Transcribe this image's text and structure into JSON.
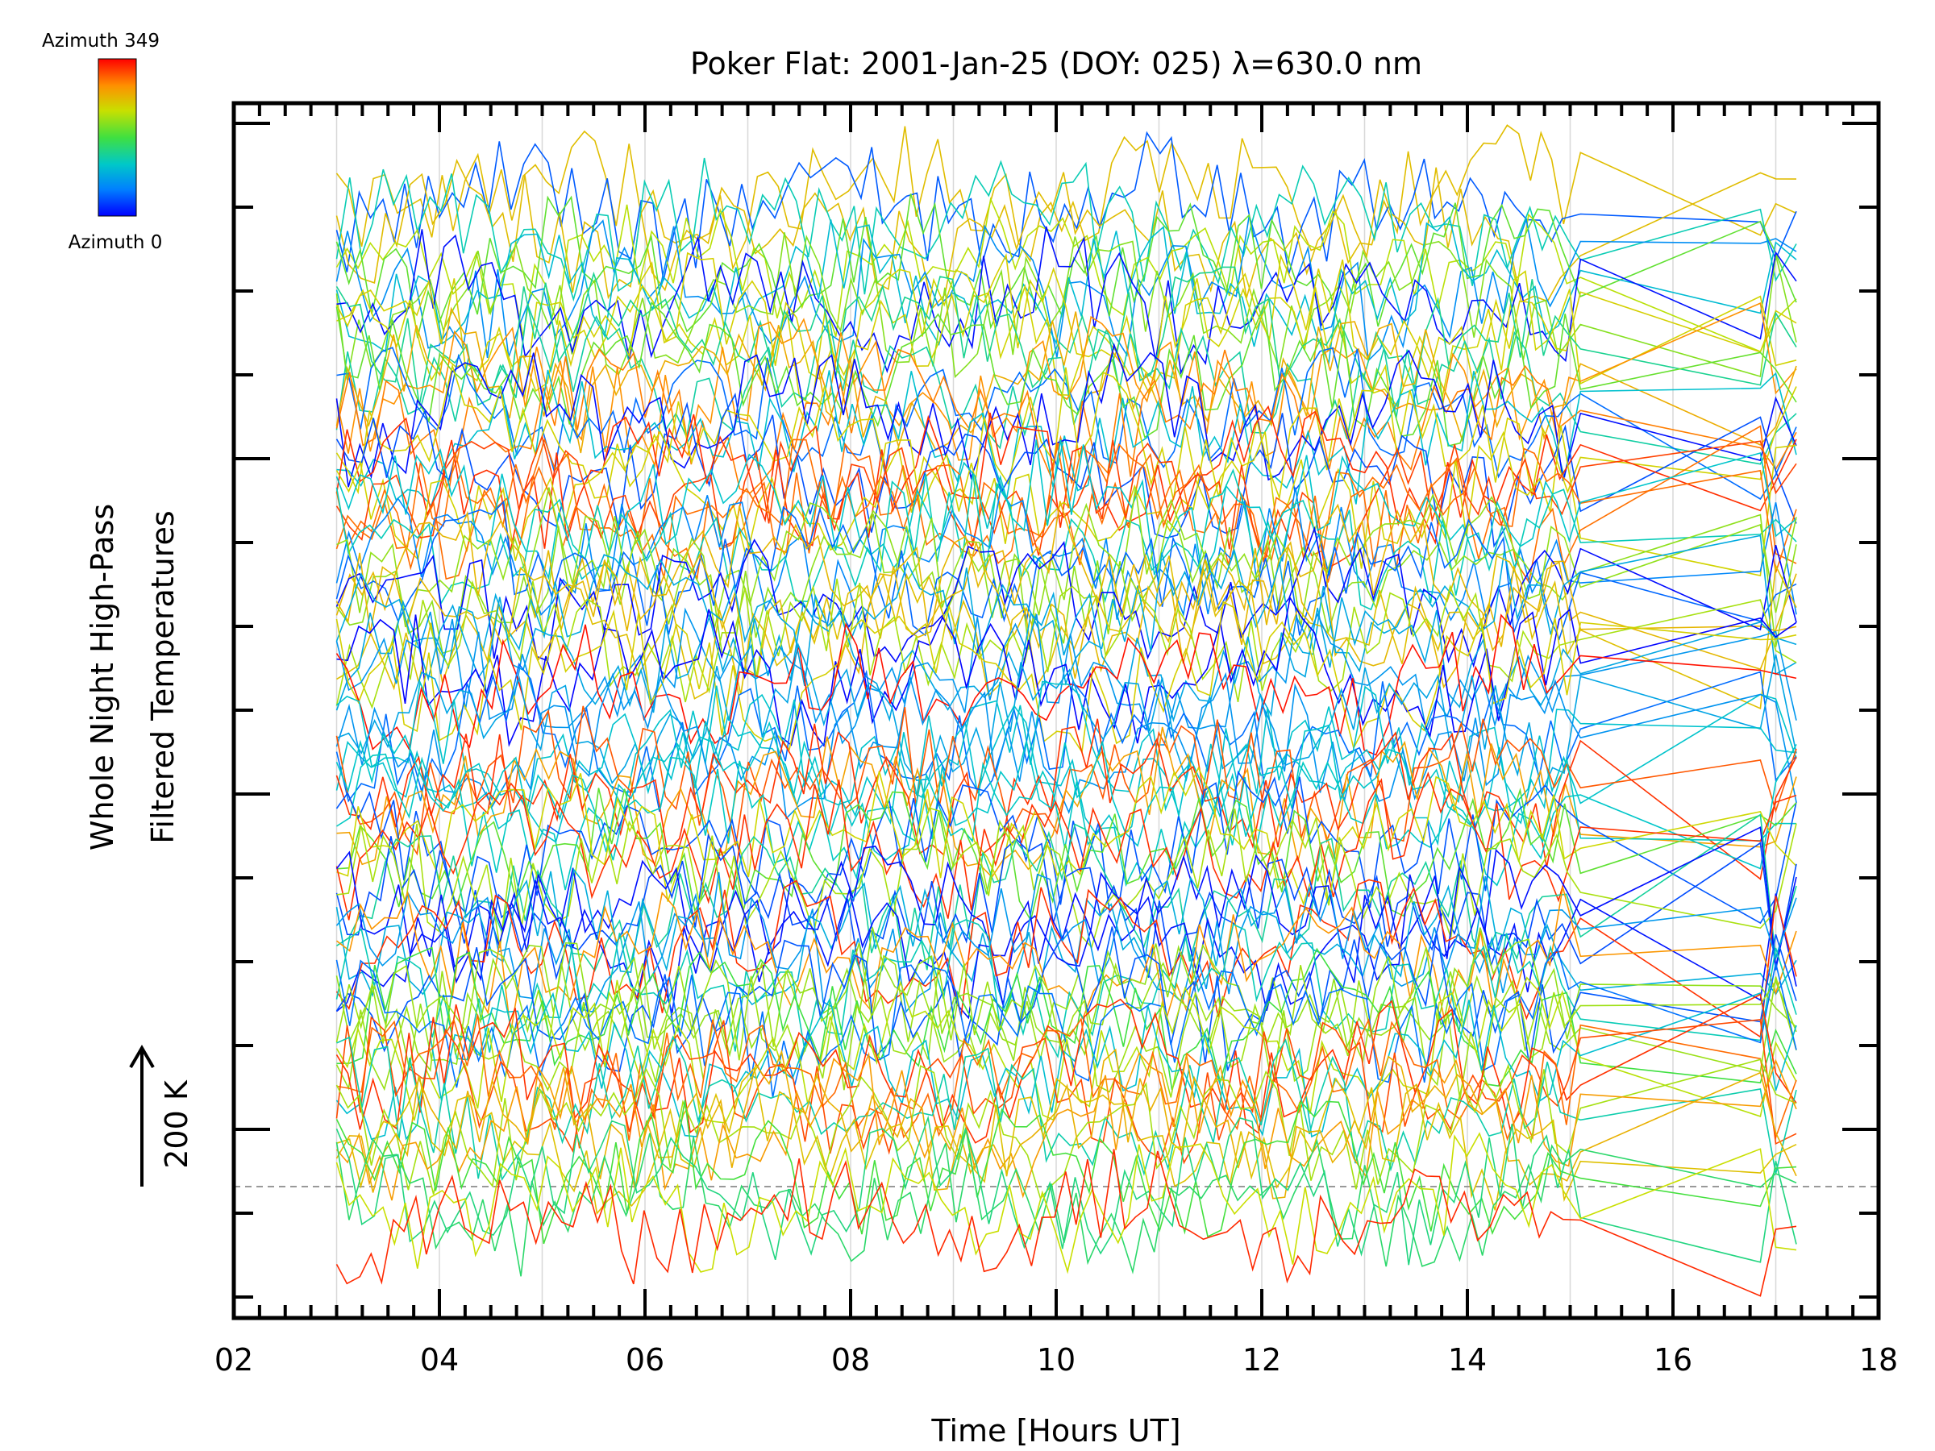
{
  "chart_data": {
    "type": "line",
    "title": "Poker Flat: 2001-Jan-25 (DOY: 025) λ=630.0 nm",
    "xlabel": "Time [Hours UT]",
    "ylabel_line1": "Whole Night High-Pass",
    "ylabel_line2": "Filtered Temperatures",
    "scale_label": "200 K",
    "x_ticks": [
      "02",
      "04",
      "06",
      "08",
      "10",
      "12",
      "14",
      "16",
      "18"
    ],
    "xlim": [
      2,
      18
    ],
    "colorbar": {
      "top_label": "Azimuth 349",
      "bottom_label": "Azimuth 0",
      "stops": [
        "#0000ff",
        "#0080ff",
        "#00c8c8",
        "#40e040",
        "#c8e000",
        "#ff9000",
        "#ff0000"
      ]
    },
    "grid_x_hours": [
      3,
      4,
      5,
      6,
      7,
      8,
      9,
      10,
      11,
      12,
      13,
      14,
      15,
      16,
      17
    ],
    "time_range_hours": [
      3.0,
      17.2
    ],
    "baseline": "dashed",
    "series_count": 90
  }
}
